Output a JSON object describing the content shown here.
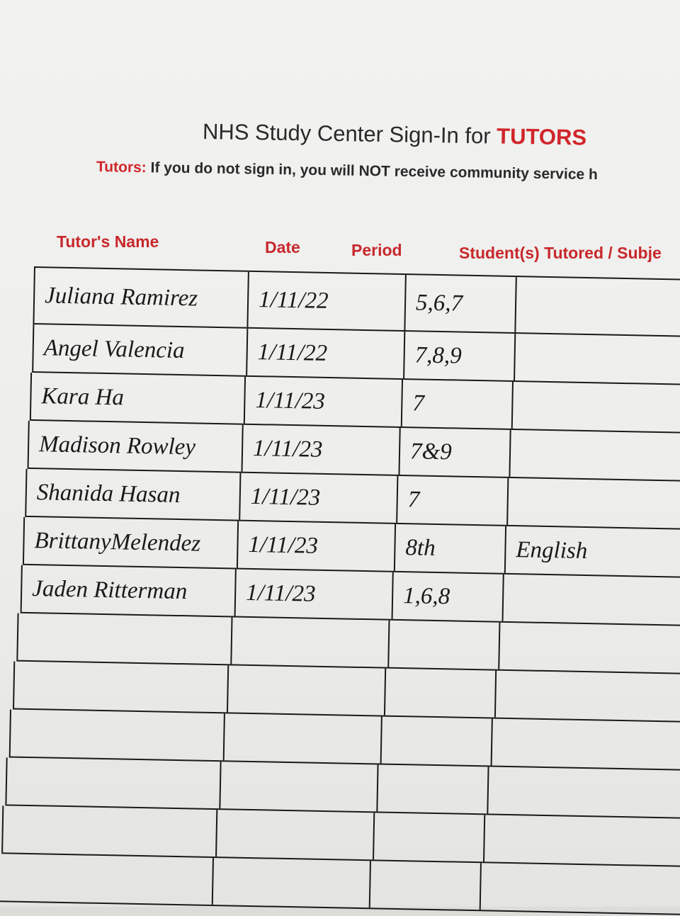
{
  "title": {
    "prefix": "NHS Study Center Sign-In for ",
    "highlight": "TUTORS"
  },
  "subtitle": {
    "label": "Tutors:",
    "text": " If you do not sign in, you will NOT receive community service h"
  },
  "columns": [
    "Tutor's Name",
    "Date",
    "Period",
    "Student(s) Tutored / Subje"
  ],
  "rows": [
    {
      "name": "Juliana Ramirez",
      "date": "1/11/22",
      "period": "5,6,7",
      "subject": ""
    },
    {
      "name": "Angel Valencia",
      "date": "1/11/22",
      "period": "7,8,9",
      "subject": ""
    },
    {
      "name": "Kara Ha",
      "date": "1/11/23",
      "period": "7",
      "subject": ""
    },
    {
      "name": "Madison Rowley",
      "date": "1/11/23",
      "period": "7&9",
      "subject": ""
    },
    {
      "name": "Shanida Hasan",
      "date": "1/11/23",
      "period": "7",
      "subject": ""
    },
    {
      "name": "BrittanyMelendez",
      "date": "1/11/23",
      "period": "8th",
      "subject": "English"
    },
    {
      "name": "Jaden Ritterman",
      "date": "1/11/23",
      "period": "1,6,8",
      "subject": ""
    },
    {
      "name": "",
      "date": "",
      "period": "",
      "subject": ""
    },
    {
      "name": "",
      "date": "",
      "period": "",
      "subject": ""
    },
    {
      "name": "",
      "date": "",
      "period": "",
      "subject": ""
    },
    {
      "name": "",
      "date": "",
      "period": "",
      "subject": ""
    },
    {
      "name": "",
      "date": "",
      "period": "",
      "subject": ""
    },
    {
      "name": "",
      "date": "",
      "period": "",
      "subject": ""
    }
  ]
}
